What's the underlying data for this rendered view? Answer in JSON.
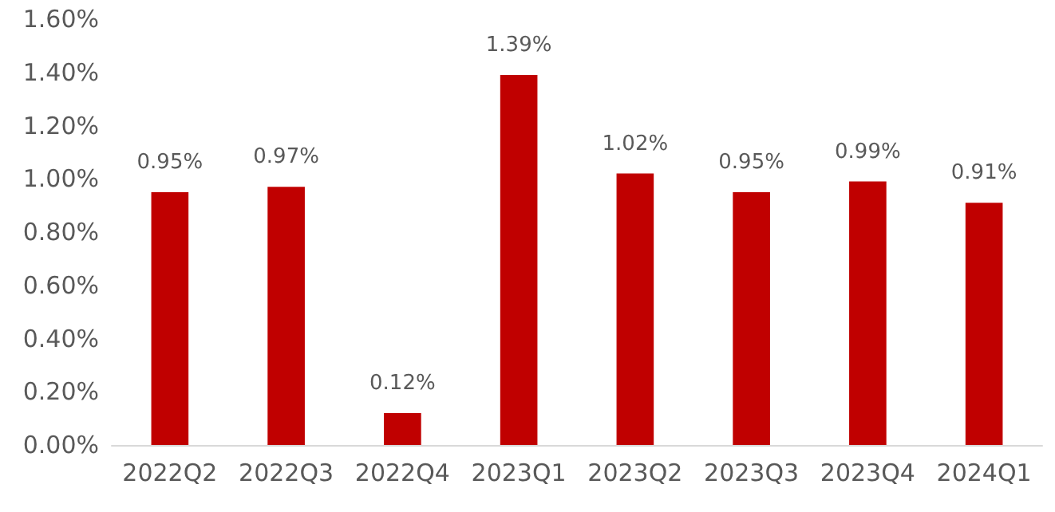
{
  "chart_data": {
    "type": "bar",
    "categories": [
      "2022Q2",
      "2022Q3",
      "2022Q4",
      "2023Q1",
      "2023Q2",
      "2023Q3",
      "2023Q4",
      "2024Q1"
    ],
    "values": [
      0.95,
      0.97,
      0.12,
      1.39,
      1.02,
      0.95,
      0.99,
      0.91
    ],
    "value_labels": [
      "0.95%",
      "0.97%",
      "0.12%",
      "1.39%",
      "1.02%",
      "0.95%",
      "0.99%",
      "0.91%"
    ],
    "color": "#c00000",
    "ylim": [
      0,
      1.6
    ],
    "yticks": [
      {
        "value": 0,
        "label": "0.00%"
      },
      {
        "value": 0.2,
        "label": "0.20%"
      },
      {
        "value": 0.4,
        "label": "0.40%"
      },
      {
        "value": 0.6,
        "label": "0.60%"
      },
      {
        "value": 0.8,
        "label": "0.80%"
      },
      {
        "value": 1.0,
        "label": "1.00%"
      },
      {
        "value": 1.2,
        "label": "1.20%"
      },
      {
        "value": 1.4,
        "label": "1.40%"
      },
      {
        "value": 1.6,
        "label": "1.60%"
      }
    ],
    "grid": false
  }
}
